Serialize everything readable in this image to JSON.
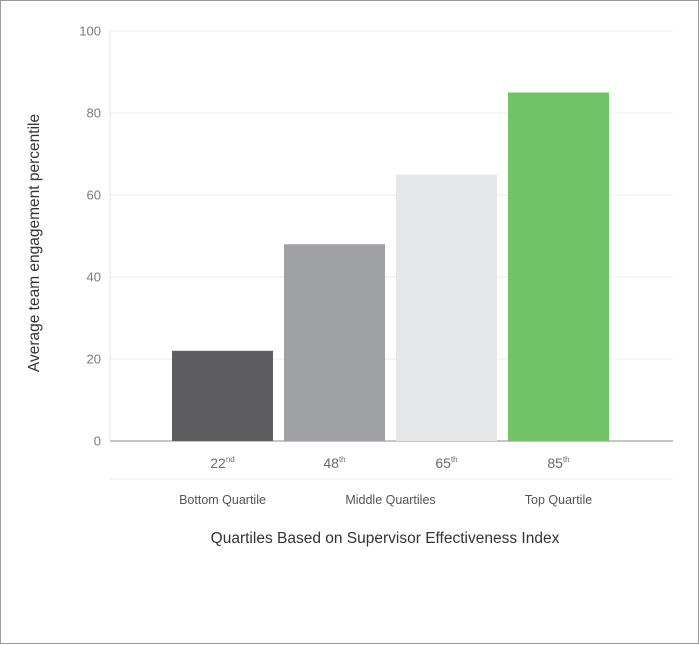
{
  "chart_data": {
    "type": "bar",
    "title": "",
    "xlabel": "Quartiles Based on Supervisor Effectiveness Index",
    "ylabel": "Average team engagement percentile",
    "ylim": [
      0,
      100
    ],
    "yticks": [
      0,
      20,
      40,
      60,
      80,
      100
    ],
    "grid": true,
    "bars": [
      {
        "value": 22,
        "label": "22",
        "suffix": "nd",
        "color": "#5d5d5f"
      },
      {
        "value": 48,
        "label": "48",
        "suffix": "th",
        "color": "#a0a1a4"
      },
      {
        "value": 65,
        "label": "65",
        "suffix": "th",
        "color": "#e6e7e8"
      },
      {
        "value": 85,
        "label": "85",
        "suffix": "th",
        "color": "#72c267"
      }
    ],
    "groups": [
      {
        "label": "Bottom Quartile",
        "bars": [
          0
        ]
      },
      {
        "label": "Middle Quartiles",
        "bars": [
          1,
          2
        ]
      },
      {
        "label": "Top Quartile",
        "bars": [
          3
        ]
      }
    ]
  }
}
